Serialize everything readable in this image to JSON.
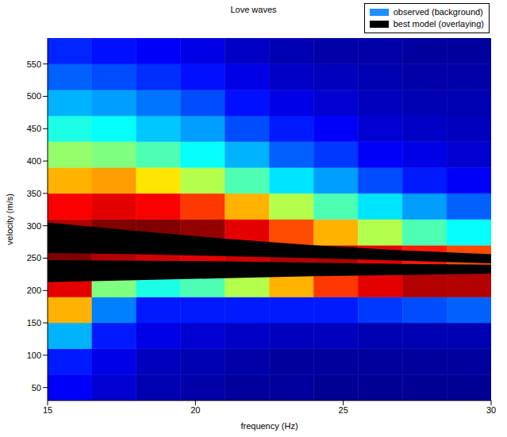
{
  "chart_data": {
    "type": "heatmap",
    "title": "Love waves",
    "x_label": "frequency (Hz)",
    "y_label": "velocity (m/s)",
    "xlim": [
      15,
      30
    ],
    "xticks": [
      15,
      20,
      25,
      30
    ],
    "ylim": [
      30,
      590
    ],
    "yticks": [
      50,
      100,
      150,
      200,
      250,
      300,
      350,
      400,
      450,
      500,
      550
    ],
    "grid": false,
    "legend": "top right",
    "series": [
      {
        "name": "observed (background)",
        "type": "heatmap",
        "color": "#1e90ff",
        "x_edges": [
          15,
          16.5,
          18,
          19.5,
          21,
          22.5,
          24,
          25.5,
          27,
          28.5,
          30
        ],
        "y_edges": [
          30,
          70,
          110,
          150,
          190,
          230,
          270,
          310,
          350,
          390,
          430,
          470,
          510,
          550,
          590
        ],
        "z_range": [
          0,
          1
        ],
        "z": [
          [
            0.12,
            0.08,
            0.05,
            0.04,
            0.03,
            0.03,
            0.02,
            0.02,
            0.02,
            0.02
          ],
          [
            0.15,
            0.1,
            0.06,
            0.05,
            0.04,
            0.03,
            0.03,
            0.03,
            0.03,
            0.03
          ],
          [
            0.3,
            0.15,
            0.1,
            0.08,
            0.07,
            0.06,
            0.06,
            0.05,
            0.05,
            0.05
          ],
          [
            0.7,
            0.25,
            0.15,
            0.15,
            0.15,
            0.15,
            0.15,
            0.18,
            0.2,
            0.22
          ],
          [
            0.9,
            0.5,
            0.4,
            0.45,
            0.55,
            0.7,
            0.82,
            0.9,
            0.95,
            0.95
          ],
          [
            1.0,
            0.95,
            0.92,
            0.9,
            0.92,
            0.95,
            0.95,
            0.9,
            0.85,
            0.8
          ],
          [
            0.95,
            1.0,
            1.0,
            0.98,
            0.9,
            0.8,
            0.7,
            0.55,
            0.45,
            0.38
          ],
          [
            0.88,
            0.9,
            0.88,
            0.82,
            0.7,
            0.55,
            0.45,
            0.35,
            0.28,
            0.22
          ],
          [
            0.7,
            0.72,
            0.65,
            0.55,
            0.45,
            0.35,
            0.28,
            0.2,
            0.15,
            0.12
          ],
          [
            0.52,
            0.5,
            0.45,
            0.38,
            0.3,
            0.22,
            0.18,
            0.12,
            0.1,
            0.08
          ],
          [
            0.4,
            0.38,
            0.32,
            0.28,
            0.2,
            0.15,
            0.12,
            0.08,
            0.07,
            0.06
          ],
          [
            0.3,
            0.28,
            0.24,
            0.2,
            0.14,
            0.1,
            0.08,
            0.06,
            0.05,
            0.05
          ],
          [
            0.22,
            0.2,
            0.17,
            0.14,
            0.1,
            0.07,
            0.06,
            0.05,
            0.04,
            0.04
          ],
          [
            0.16,
            0.14,
            0.12,
            0.1,
            0.07,
            0.05,
            0.04,
            0.04,
            0.03,
            0.03
          ]
        ]
      },
      {
        "name": "best model (overlaying)",
        "type": "band",
        "color": "#000000",
        "x": [
          15,
          18,
          21,
          24,
          27,
          30
        ],
        "bands": [
          {
            "low": [
              258,
              256,
              253,
              250,
              246,
              242
            ],
            "high": [
              305,
              292,
              280,
              270,
              262,
              256
            ]
          },
          {
            "low": [
              213,
              216,
              219,
              222,
              224,
              226
            ],
            "high": [
              247,
              246,
              245,
              243,
              241,
              240
            ]
          }
        ]
      }
    ]
  }
}
